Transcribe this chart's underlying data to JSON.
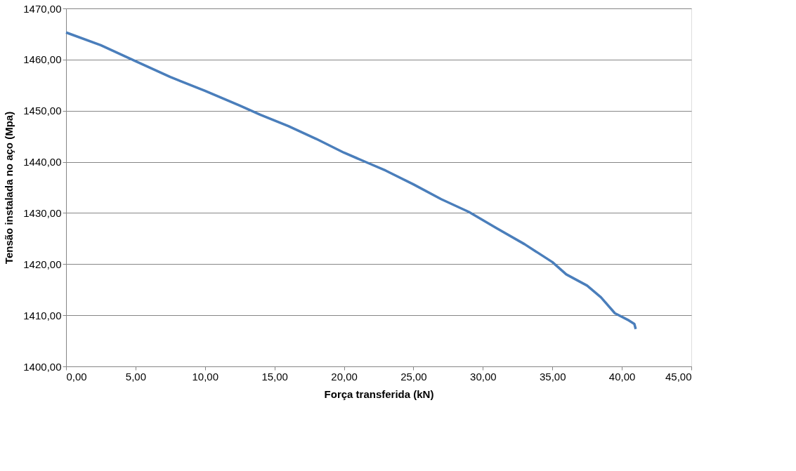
{
  "chart_data": {
    "type": "line",
    "xlabel": "Força transferida (kN)",
    "ylabel": "Tensão instalada no aço (Mpa)",
    "x": [
      0,
      2.5,
      5,
      7.5,
      10,
      12.5,
      14,
      16,
      18,
      20,
      21.8,
      23,
      25,
      27,
      29,
      31,
      33,
      35,
      36,
      37.5,
      38.5,
      39.5,
      40.5,
      40.9,
      41.0
    ],
    "series": [
      {
        "color": "#4a7ebb",
        "values": [
          1465.3,
          1462.8,
          1459.7,
          1456.6,
          1453.9,
          1451.0,
          1449.2,
          1447.0,
          1444.5,
          1441.8,
          1439.7,
          1438.3,
          1435.6,
          1432.7,
          1430.2,
          1427.0,
          1423.9,
          1420.4,
          1418.0,
          1415.8,
          1413.5,
          1410.4,
          1409.0,
          1408.3,
          1407.3
        ]
      }
    ],
    "xlim": [
      0,
      45
    ],
    "ylim": [
      1400,
      1470
    ],
    "xticks": [
      {
        "value": 0,
        "label": "0,00"
      },
      {
        "value": 5,
        "label": "5,00"
      },
      {
        "value": 10,
        "label": "10,00"
      },
      {
        "value": 15,
        "label": "15,00"
      },
      {
        "value": 20,
        "label": "20,00"
      },
      {
        "value": 25,
        "label": "25,00"
      },
      {
        "value": 30,
        "label": "30,00"
      },
      {
        "value": 35,
        "label": "35,00"
      },
      {
        "value": 40,
        "label": "40,00"
      },
      {
        "value": 45,
        "label": "45,00"
      }
    ],
    "yticks": [
      {
        "value": 1400,
        "label": "1400,00"
      },
      {
        "value": 1410,
        "label": "1410,00"
      },
      {
        "value": 1420,
        "label": "1420,00"
      },
      {
        "value": 1430,
        "label": "1430,00"
      },
      {
        "value": 1440,
        "label": "1440,00"
      },
      {
        "value": 1450,
        "label": "1450,00"
      },
      {
        "value": 1460,
        "label": "1460,00"
      },
      {
        "value": 1470,
        "label": "1470,00"
      }
    ],
    "grid": "y",
    "legend": false,
    "marker": "none",
    "line_style": "solid"
  }
}
